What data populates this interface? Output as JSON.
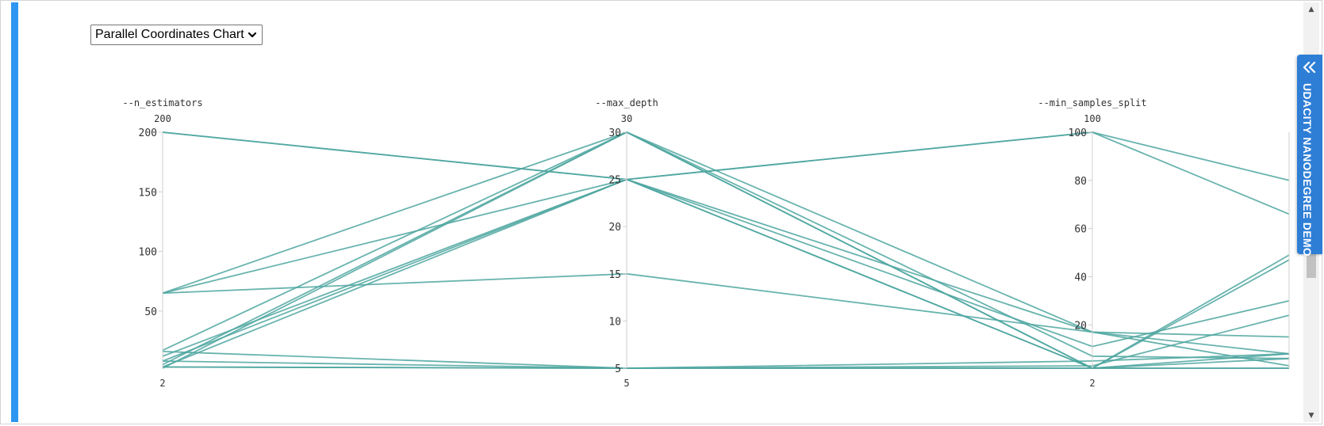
{
  "chart_selector": {
    "selected": "Parallel Coordinates Chart",
    "icon": "chevron-down-icon"
  },
  "side_tab": {
    "label": "UDACITY NANODEGREE DEMO",
    "icon": "double-chevron-left-icon",
    "color": "#2e7ed6"
  },
  "colors": {
    "line": "#4ea6a0",
    "axis": "#cfcfcf",
    "accent_bar": "#2f96f1"
  },
  "chart_data": {
    "type": "parallel-coordinates",
    "dimensions": [
      {
        "name": "--n_estimators",
        "range": [
          2,
          200
        ],
        "top_label": "200",
        "bottom_label": "2",
        "ticks": [
          {
            "value": 200,
            "label": "200"
          },
          {
            "value": 150,
            "label": "150"
          },
          {
            "value": 100,
            "label": "100"
          },
          {
            "value": 50,
            "label": "50"
          }
        ]
      },
      {
        "name": "--max_depth",
        "range": [
          5,
          30
        ],
        "top_label": "30",
        "bottom_label": "5",
        "ticks": [
          {
            "value": 30,
            "label": "30"
          },
          {
            "value": 25,
            "label": "25"
          },
          {
            "value": 20,
            "label": "20"
          },
          {
            "value": 15,
            "label": "15"
          },
          {
            "value": 10,
            "label": "10"
          },
          {
            "value": 5,
            "label": "5"
          }
        ]
      },
      {
        "name": "--min_samples_split",
        "range": [
          2,
          100
        ],
        "top_label": "100",
        "bottom_label": "2",
        "ticks": [
          {
            "value": 100,
            "label": "100"
          },
          {
            "value": 80,
            "label": "80"
          },
          {
            "value": 60,
            "label": "60"
          },
          {
            "value": 40,
            "label": "40"
          },
          {
            "value": 20,
            "label": "20"
          }
        ]
      },
      {
        "name": "",
        "range": [
          2,
          100
        ],
        "top_label": "",
        "bottom_label": "",
        "ticks": []
      }
    ],
    "lines": [
      [
        200,
        25,
        100,
        80
      ],
      [
        200,
        25,
        100,
        66
      ],
      [
        65,
        30,
        17,
        8
      ],
      [
        65,
        25,
        2,
        49
      ],
      [
        65,
        15,
        17,
        15
      ],
      [
        17,
        30,
        2,
        47
      ],
      [
        12,
        25,
        11,
        30
      ],
      [
        8,
        25,
        2,
        6
      ],
      [
        5,
        30,
        7,
        6
      ],
      [
        3,
        25,
        17,
        3
      ],
      [
        16,
        5,
        3,
        24
      ],
      [
        8,
        5,
        5,
        8
      ],
      [
        3,
        5,
        2,
        2
      ],
      [
        3,
        5,
        2,
        8
      ],
      [
        2,
        30,
        2,
        2
      ]
    ]
  }
}
